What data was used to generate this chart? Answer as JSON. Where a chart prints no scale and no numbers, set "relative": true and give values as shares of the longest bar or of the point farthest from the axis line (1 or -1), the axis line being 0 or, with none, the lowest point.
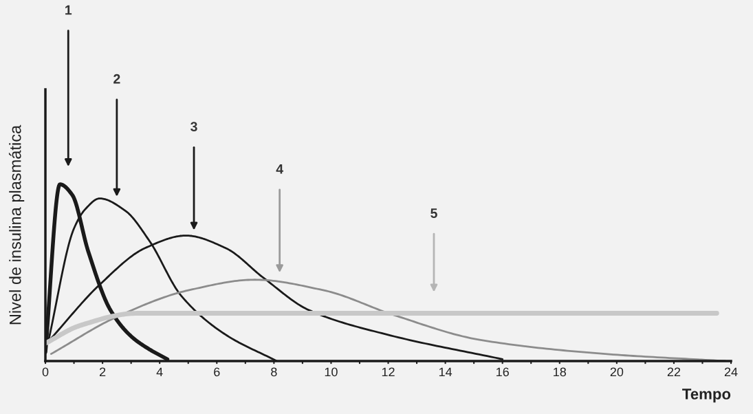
{
  "chart_data": {
    "type": "line",
    "relative": true,
    "xlabel": "Tempo",
    "ylabel": "Nivel de insulina plasmática",
    "xlim": [
      0,
      24
    ],
    "xticks": [
      0,
      {
        "value": 1,
        "label": null
      },
      2,
      {
        "value": 3,
        "label": null
      },
      4,
      {
        "value": 5,
        "label": null
      },
      6,
      {
        "value": 7,
        "label": null
      },
      8,
      {
        "value": 9,
        "label": null
      },
      10,
      {
        "value": 11,
        "label": null
      },
      12,
      {
        "value": 13,
        "label": null
      },
      14,
      {
        "value": 15,
        "label": null
      },
      16,
      {
        "value": 17,
        "label": null
      },
      18,
      {
        "value": 19,
        "label": null
      },
      20,
      {
        "value": 21,
        "label": null
      },
      22,
      {
        "value": 23,
        "label": null
      },
      24
    ],
    "grid": false,
    "legend": false,
    "marker": "none",
    "line_style": "solid",
    "series": [
      {
        "color": "#1a1a1a",
        "x": [
          0,
          0.51,
          0.94,
          1.5,
          2.27,
          3,
          3.6,
          4.27
        ],
        "values": [
          0.05,
          1.0,
          0.94,
          0.62,
          0.29,
          0.14,
          0.07,
          0.01
        ]
      },
      {
        "color": "#1a1a1a",
        "x": [
          0.1,
          1.0,
          1.4,
          1.9,
          2.8,
          3.64,
          4.75,
          6.3,
          8.1
        ],
        "values": [
          0.11,
          0.75,
          0.86,
          0.92,
          0.85,
          0.68,
          0.37,
          0.15,
          0
        ]
      },
      {
        "color": "#1a1a1a",
        "x": [
          0.1,
          1.95,
          3.5,
          4.92,
          6.3,
          7.64,
          9.2,
          11.95,
          16
        ],
        "values": [
          0.11,
          0.44,
          0.64,
          0.71,
          0.64,
          0.47,
          0.29,
          0.15,
          0.01
        ]
      },
      {
        "color": "#8c8c8c",
        "x": [
          0.2,
          2.5,
          5,
          7.33,
          9.75,
          12.2,
          15.2,
          19.6,
          23.8
        ],
        "values": [
          0.04,
          0.25,
          0.4,
          0.46,
          0.4,
          0.26,
          0.12,
          0.04,
          0
        ]
      },
      {
        "color": "#c8c8c8",
        "x": [
          0,
          1.2,
          3.2,
          6,
          12,
          18,
          23.5
        ],
        "values": [
          0.1,
          0.2,
          0.27,
          0.27,
          0.27,
          0.27,
          0.27
        ]
      }
    ],
    "annotations": [
      "1",
      "2",
      "3",
      "4",
      "5"
    ]
  }
}
